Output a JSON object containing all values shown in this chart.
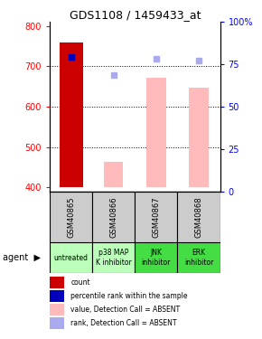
{
  "title": "GDS1108 / 1459433_at",
  "samples": [
    "GSM40865",
    "GSM40866",
    "GSM40867",
    "GSM40868"
  ],
  "agents": [
    "untreated",
    "p38 MAP\nK inhibitor",
    "JNK\ninhibitor",
    "ERK\ninhibitor"
  ],
  "agent_colors": [
    "#bbffbb",
    "#bbffbb",
    "#44dd44",
    "#44dd44"
  ],
  "ylim_left": [
    390,
    810
  ],
  "ylim_right": [
    0,
    100
  ],
  "left_ticks": [
    400,
    500,
    600,
    700,
    800
  ],
  "right_ticks": [
    0,
    25,
    50,
    75,
    100
  ],
  "right_tick_labels": [
    "0",
    "25",
    "50",
    "75",
    "100%"
  ],
  "bar_bottom": 400,
  "red_bar": {
    "x": 0,
    "value": 760,
    "color": "#cc0000"
  },
  "blue_dot": {
    "x": 0,
    "value": 724,
    "color": "#0000bb"
  },
  "pink_bars": [
    {
      "x": 1,
      "value": 464,
      "color": "#ffbbbb"
    },
    {
      "x": 2,
      "value": 671,
      "color": "#ffbbbb"
    },
    {
      "x": 3,
      "value": 648,
      "color": "#ffbbbb"
    }
  ],
  "lightblue_dots": [
    {
      "x": 1,
      "value": 678,
      "color": "#aaaaee"
    },
    {
      "x": 2,
      "value": 718,
      "color": "#aaaaee"
    },
    {
      "x": 3,
      "value": 714,
      "color": "#aaaaee"
    }
  ],
  "gridline_values": [
    500,
    600,
    700
  ],
  "sample_bg_color": "#cccccc",
  "legend_items": [
    {
      "color": "#cc0000",
      "label": "count"
    },
    {
      "color": "#0000bb",
      "label": "percentile rank within the sample"
    },
    {
      "color": "#ffbbbb",
      "label": "value, Detection Call = ABSENT"
    },
    {
      "color": "#aaaaee",
      "label": "rank, Detection Call = ABSENT"
    }
  ]
}
